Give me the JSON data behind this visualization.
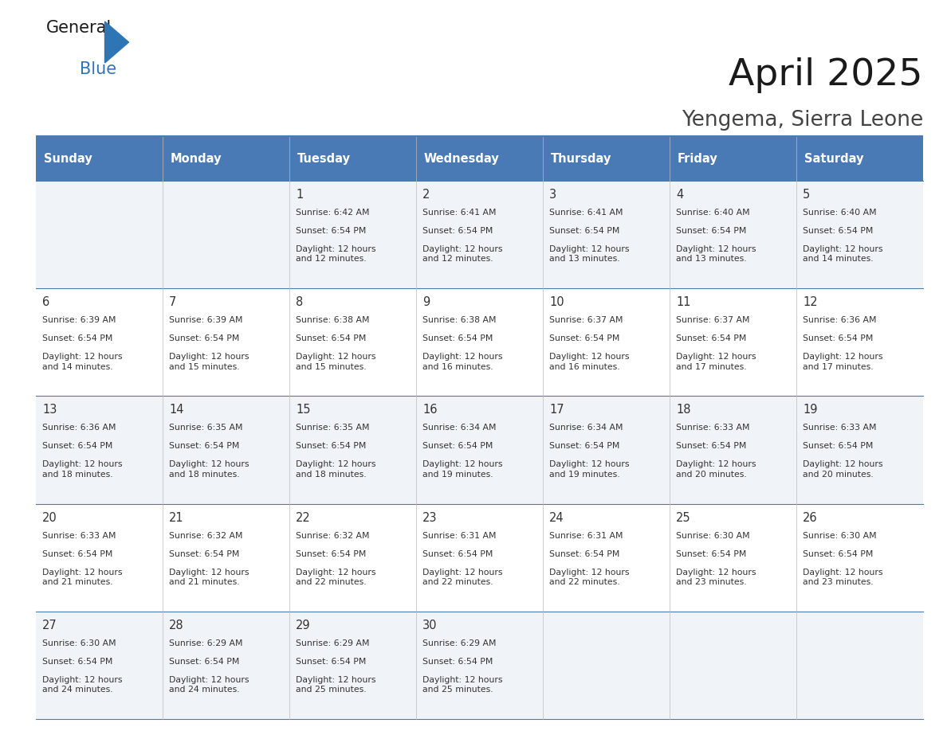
{
  "title": "April 2025",
  "subtitle": "Yengema, Sierra Leone",
  "header_bg": "#4a7ab5",
  "header_text_color": "#FFFFFF",
  "days_of_week": [
    "Sunday",
    "Monday",
    "Tuesday",
    "Wednesday",
    "Thursday",
    "Friday",
    "Saturday"
  ],
  "cell_bg_odd": "#f0f4f8",
  "cell_bg_even": "#FFFFFF",
  "border_color": "#4a7ab5",
  "text_color": "#333333",
  "calendar": [
    [
      {
        "day": "",
        "sunrise": "",
        "sunset": "",
        "daylight": ""
      },
      {
        "day": "",
        "sunrise": "",
        "sunset": "",
        "daylight": ""
      },
      {
        "day": "1",
        "sunrise": "6:42 AM",
        "sunset": "6:54 PM",
        "daylight": "12 hours\nand 12 minutes."
      },
      {
        "day": "2",
        "sunrise": "6:41 AM",
        "sunset": "6:54 PM",
        "daylight": "12 hours\nand 12 minutes."
      },
      {
        "day": "3",
        "sunrise": "6:41 AM",
        "sunset": "6:54 PM",
        "daylight": "12 hours\nand 13 minutes."
      },
      {
        "day": "4",
        "sunrise": "6:40 AM",
        "sunset": "6:54 PM",
        "daylight": "12 hours\nand 13 minutes."
      },
      {
        "day": "5",
        "sunrise": "6:40 AM",
        "sunset": "6:54 PM",
        "daylight": "12 hours\nand 14 minutes."
      }
    ],
    [
      {
        "day": "6",
        "sunrise": "6:39 AM",
        "sunset": "6:54 PM",
        "daylight": "12 hours\nand 14 minutes."
      },
      {
        "day": "7",
        "sunrise": "6:39 AM",
        "sunset": "6:54 PM",
        "daylight": "12 hours\nand 15 minutes."
      },
      {
        "day": "8",
        "sunrise": "6:38 AM",
        "sunset": "6:54 PM",
        "daylight": "12 hours\nand 15 minutes."
      },
      {
        "day": "9",
        "sunrise": "6:38 AM",
        "sunset": "6:54 PM",
        "daylight": "12 hours\nand 16 minutes."
      },
      {
        "day": "10",
        "sunrise": "6:37 AM",
        "sunset": "6:54 PM",
        "daylight": "12 hours\nand 16 minutes."
      },
      {
        "day": "11",
        "sunrise": "6:37 AM",
        "sunset": "6:54 PM",
        "daylight": "12 hours\nand 17 minutes."
      },
      {
        "day": "12",
        "sunrise": "6:36 AM",
        "sunset": "6:54 PM",
        "daylight": "12 hours\nand 17 minutes."
      }
    ],
    [
      {
        "day": "13",
        "sunrise": "6:36 AM",
        "sunset": "6:54 PM",
        "daylight": "12 hours\nand 18 minutes."
      },
      {
        "day": "14",
        "sunrise": "6:35 AM",
        "sunset": "6:54 PM",
        "daylight": "12 hours\nand 18 minutes."
      },
      {
        "day": "15",
        "sunrise": "6:35 AM",
        "sunset": "6:54 PM",
        "daylight": "12 hours\nand 18 minutes."
      },
      {
        "day": "16",
        "sunrise": "6:34 AM",
        "sunset": "6:54 PM",
        "daylight": "12 hours\nand 19 minutes."
      },
      {
        "day": "17",
        "sunrise": "6:34 AM",
        "sunset": "6:54 PM",
        "daylight": "12 hours\nand 19 minutes."
      },
      {
        "day": "18",
        "sunrise": "6:33 AM",
        "sunset": "6:54 PM",
        "daylight": "12 hours\nand 20 minutes."
      },
      {
        "day": "19",
        "sunrise": "6:33 AM",
        "sunset": "6:54 PM",
        "daylight": "12 hours\nand 20 minutes."
      }
    ],
    [
      {
        "day": "20",
        "sunrise": "6:33 AM",
        "sunset": "6:54 PM",
        "daylight": "12 hours\nand 21 minutes."
      },
      {
        "day": "21",
        "sunrise": "6:32 AM",
        "sunset": "6:54 PM",
        "daylight": "12 hours\nand 21 minutes."
      },
      {
        "day": "22",
        "sunrise": "6:32 AM",
        "sunset": "6:54 PM",
        "daylight": "12 hours\nand 22 minutes."
      },
      {
        "day": "23",
        "sunrise": "6:31 AM",
        "sunset": "6:54 PM",
        "daylight": "12 hours\nand 22 minutes."
      },
      {
        "day": "24",
        "sunrise": "6:31 AM",
        "sunset": "6:54 PM",
        "daylight": "12 hours\nand 22 minutes."
      },
      {
        "day": "25",
        "sunrise": "6:30 AM",
        "sunset": "6:54 PM",
        "daylight": "12 hours\nand 23 minutes."
      },
      {
        "day": "26",
        "sunrise": "6:30 AM",
        "sunset": "6:54 PM",
        "daylight": "12 hours\nand 23 minutes."
      }
    ],
    [
      {
        "day": "27",
        "sunrise": "6:30 AM",
        "sunset": "6:54 PM",
        "daylight": "12 hours\nand 24 minutes."
      },
      {
        "day": "28",
        "sunrise": "6:29 AM",
        "sunset": "6:54 PM",
        "daylight": "12 hours\nand 24 minutes."
      },
      {
        "day": "29",
        "sunrise": "6:29 AM",
        "sunset": "6:54 PM",
        "daylight": "12 hours\nand 25 minutes."
      },
      {
        "day": "30",
        "sunrise": "6:29 AM",
        "sunset": "6:54 PM",
        "daylight": "12 hours\nand 25 minutes."
      },
      {
        "day": "",
        "sunrise": "",
        "sunset": "",
        "daylight": ""
      },
      {
        "day": "",
        "sunrise": "",
        "sunset": "",
        "daylight": ""
      },
      {
        "day": "",
        "sunrise": "",
        "sunset": "",
        "daylight": ""
      }
    ]
  ]
}
